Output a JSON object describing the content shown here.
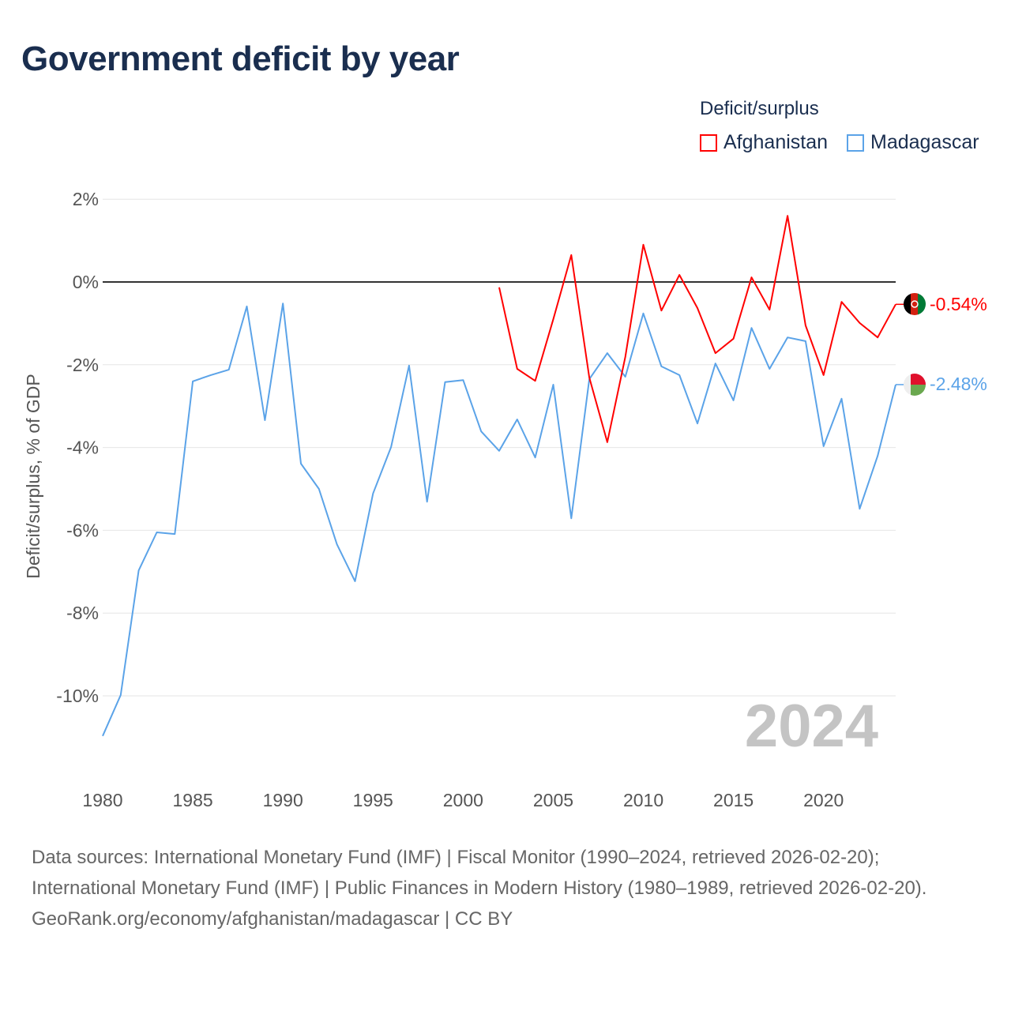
{
  "title": "Government deficit by year",
  "legend": {
    "title": "Deficit/surplus",
    "items": [
      {
        "label": "Afghanistan",
        "color": "#ff0000"
      },
      {
        "label": "Madagascar",
        "color": "#5ba3e8"
      }
    ]
  },
  "footer": {
    "sources": "Data sources: International Monetary Fund (IMF) | Fiscal Monitor (1990–2024, retrieved 2026-02-20); International Monetary Fund (IMF) | Public Finances in Modern History (1980–1989, retrieved 2026-02-20).",
    "credit": "GeoRank.org/economy/afghanistan/madagascar | CC BY"
  },
  "chart_data": {
    "type": "line",
    "title": "Government deficit by year",
    "xlabel": "",
    "ylabel": "Deficit/surplus, % of GDP",
    "xlim": [
      1980,
      2024
    ],
    "ylim": [
      -11,
      2
    ],
    "x_ticks": [
      "1980",
      "1985",
      "1990",
      "1995",
      "2000",
      "2005",
      "2010",
      "2015",
      "2020"
    ],
    "x_tick_values": [
      1980,
      1985,
      1990,
      1995,
      2000,
      2005,
      2010,
      2015,
      2020
    ],
    "y_ticks": [
      "2%",
      "0%",
      "-2%",
      "-4%",
      "-6%",
      "-8%",
      "-10%"
    ],
    "y_tick_values": [
      2,
      0,
      -2,
      -4,
      -6,
      -8,
      -10
    ],
    "grid": true,
    "legend_position": "top-right",
    "year_watermark": "2024",
    "series": [
      {
        "name": "Afghanistan",
        "color": "#ff0000",
        "end_label": "-0.54%",
        "x": [
          2002,
          2003,
          2004,
          2005,
          2006,
          2007,
          2008,
          2009,
          2010,
          2011,
          2012,
          2013,
          2014,
          2015,
          2016,
          2017,
          2018,
          2019,
          2020,
          2021,
          2022,
          2023,
          2024
        ],
        "values": [
          -0.13,
          -2.1,
          -2.39,
          -0.9,
          0.65,
          -2.31,
          -3.87,
          -1.81,
          0.9,
          -0.69,
          0.17,
          -0.63,
          -1.72,
          -1.37,
          0.11,
          -0.67,
          1.6,
          -1.05,
          -2.25,
          -0.48,
          -0.99,
          -1.34,
          -0.54
        ]
      },
      {
        "name": "Madagascar",
        "color": "#5ba3e8",
        "end_label": "-2.48%",
        "x": [
          1980,
          1981,
          1982,
          1983,
          1984,
          1985,
          1986,
          1987,
          1988,
          1989,
          1990,
          1991,
          1992,
          1993,
          1994,
          1995,
          1996,
          1997,
          1998,
          1999,
          2000,
          2001,
          2002,
          2003,
          2004,
          2005,
          2006,
          2007,
          2008,
          2009,
          2010,
          2011,
          2012,
          2013,
          2014,
          2015,
          2016,
          2017,
          2018,
          2019,
          2020,
          2021,
          2022,
          2023,
          2024
        ],
        "values": [
          -10.97,
          -9.98,
          -6.97,
          -6.05,
          -6.09,
          -2.4,
          -2.25,
          -2.12,
          -0.59,
          -3.34,
          -0.52,
          -4.39,
          -5.0,
          -6.34,
          -7.23,
          -5.11,
          -3.99,
          -2.02,
          -5.31,
          -2.42,
          -2.37,
          -3.61,
          -4.08,
          -3.32,
          -4.24,
          -2.48,
          -5.71,
          -2.35,
          -1.72,
          -2.29,
          -0.76,
          -2.04,
          -2.25,
          -3.42,
          -1.97,
          -2.86,
          -1.11,
          -2.1,
          -1.34,
          -1.43,
          -3.97,
          -2.82,
          -5.48,
          -4.2,
          -2.48
        ]
      }
    ]
  }
}
